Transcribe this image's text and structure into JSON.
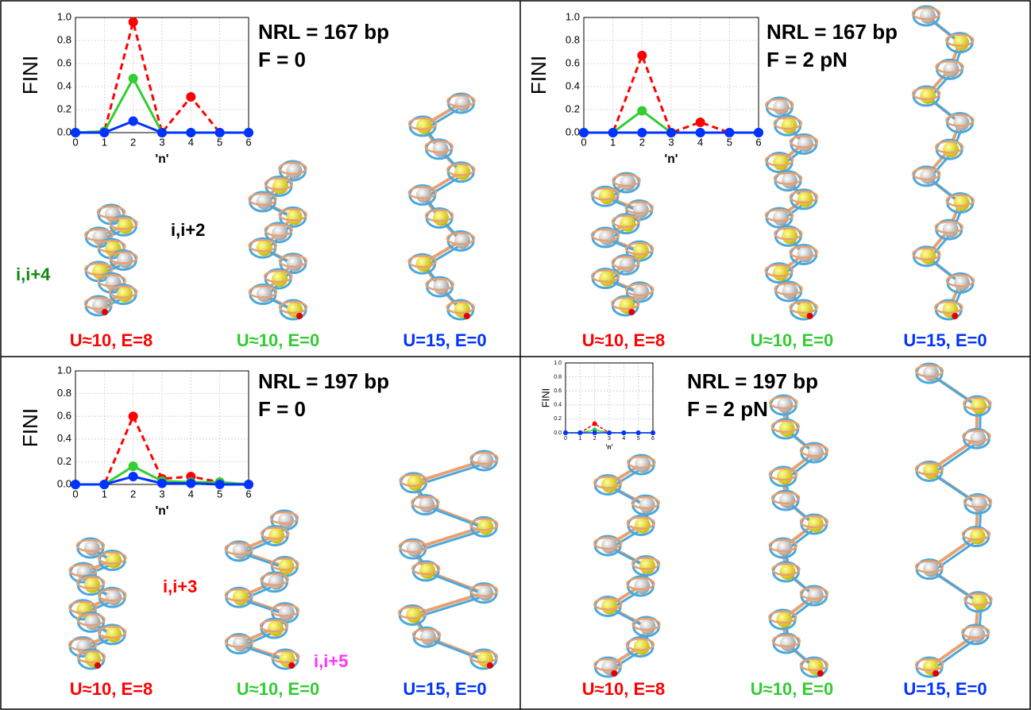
{
  "chart_data": [
    {
      "type": "line",
      "title": "NRL = 167 bp",
      "subtitle": "F = 0",
      "x_label": "'n'",
      "y_label": "FINI",
      "x": [
        0,
        1,
        2,
        3,
        4,
        5,
        6
      ],
      "xlim": [
        0,
        6
      ],
      "xticks": [
        0,
        1,
        2,
        3,
        4,
        5,
        6
      ],
      "ylim": [
        0,
        1
      ],
      "yticks": [
        {
          "value": 0,
          "label": "0.0"
        },
        0.2,
        0.4,
        0.6,
        0.8,
        {
          "value": 1,
          "label": "1.0"
        }
      ],
      "grid": true,
      "series": [
        {
          "name": "U≈10, E=8",
          "color": "#ff0000",
          "line_style": "dashed",
          "values": [
            0,
            0.01,
            0.96,
            0,
            0.31,
            0,
            0
          ]
        },
        {
          "name": "U≈10, E=0",
          "color": "#33cc33",
          "line_style": "solid",
          "values": [
            0,
            0.01,
            0.47,
            0,
            0,
            0,
            0
          ]
        },
        {
          "name": "U=15, E=0",
          "color": "#0033ff",
          "line_style": "solid",
          "values": [
            0,
            0,
            0.1,
            0,
            0,
            0,
            0
          ]
        }
      ],
      "annotations": [
        {
          "text": "i,i+4",
          "color": "#118811"
        },
        {
          "text": "i,i+2",
          "color": "#000000"
        }
      ]
    },
    {
      "type": "line",
      "title": "NRL = 167 bp",
      "subtitle": "F = 2 pN",
      "x_label": "'n'",
      "y_label": "FINI",
      "x": [
        0,
        1,
        2,
        3,
        4,
        5,
        6
      ],
      "xlim": [
        0,
        6
      ],
      "xticks": [
        0,
        1,
        2,
        3,
        4,
        5,
        6
      ],
      "ylim": [
        0,
        1
      ],
      "yticks": [
        {
          "value": 0,
          "label": "0.0"
        },
        0.2,
        0.4,
        0.6,
        0.8,
        {
          "value": 1,
          "label": "1.0"
        }
      ],
      "grid": true,
      "series": [
        {
          "name": "U≈10, E=8",
          "color": "#ff0000",
          "line_style": "dashed",
          "values": [
            0,
            0,
            0.67,
            0,
            0.09,
            0,
            0
          ]
        },
        {
          "name": "U≈10, E=0",
          "color": "#33cc33",
          "line_style": "solid",
          "values": [
            0,
            0,
            0.19,
            0,
            0,
            0,
            0
          ]
        },
        {
          "name": "U=15, E=0",
          "color": "#0033ff",
          "line_style": "solid",
          "values": [
            0,
            0,
            0,
            0,
            0,
            0,
            0
          ]
        }
      ],
      "annotations": []
    },
    {
      "type": "line",
      "title": "NRL = 197 bp",
      "subtitle": "F = 0",
      "x_label": "'n'",
      "y_label": "FINI",
      "x": [
        0,
        1,
        2,
        3,
        4,
        5,
        6
      ],
      "xlim": [
        0,
        6
      ],
      "xticks": [
        0,
        1,
        2,
        3,
        4,
        5,
        6
      ],
      "ylim": [
        0,
        1
      ],
      "yticks": [
        {
          "value": 0,
          "label": "0.0"
        },
        0.2,
        0.4,
        0.6,
        0.8,
        {
          "value": 1,
          "label": "1.0"
        }
      ],
      "grid": true,
      "series": [
        {
          "name": "U≈10, E=8",
          "color": "#ff0000",
          "line_style": "dashed",
          "values": [
            0,
            0,
            0.6,
            0.05,
            0.07,
            0.02,
            0
          ]
        },
        {
          "name": "U≈10, E=0",
          "color": "#33cc33",
          "line_style": "solid",
          "values": [
            0,
            0,
            0.16,
            0.03,
            0.02,
            0.02,
            0
          ]
        },
        {
          "name": "U=15, E=0",
          "color": "#0033ff",
          "line_style": "solid",
          "values": [
            0,
            0,
            0.07,
            0.01,
            0.01,
            0,
            0
          ]
        }
      ],
      "annotations": [
        {
          "text": "i,i+3",
          "color": "#ff0000"
        },
        {
          "text": "i,i+5",
          "color": "#ff33ff"
        }
      ]
    },
    {
      "type": "line",
      "title": "NRL = 197 bp",
      "subtitle": "F = 2 pN",
      "x_label": "'n'",
      "y_label": "FINI",
      "x": [
        0,
        1,
        2,
        3,
        4,
        5,
        6
      ],
      "xlim": [
        0,
        6
      ],
      "xticks": [
        0,
        1,
        2,
        3,
        4,
        5,
        6
      ],
      "ylim": [
        0,
        1
      ],
      "yticks": [
        {
          "value": 0,
          "label": "0.0"
        },
        0.2,
        0.4,
        0.6,
        0.8,
        {
          "value": 1,
          "label": "1.0"
        }
      ],
      "grid": true,
      "series": [
        {
          "name": "U≈10, E=8",
          "color": "#ff0000",
          "line_style": "dashed",
          "values": [
            0,
            0,
            0.13,
            0,
            0,
            0,
            0
          ]
        },
        {
          "name": "U≈10, E=0",
          "color": "#33cc33",
          "line_style": "solid",
          "values": [
            0,
            0,
            0.04,
            0,
            0,
            0,
            0
          ]
        },
        {
          "name": "U=15, E=0",
          "color": "#0033ff",
          "line_style": "solid",
          "values": [
            0,
            0,
            0,
            0,
            0,
            0,
            0
          ]
        }
      ],
      "annotations": []
    }
  ]
}
